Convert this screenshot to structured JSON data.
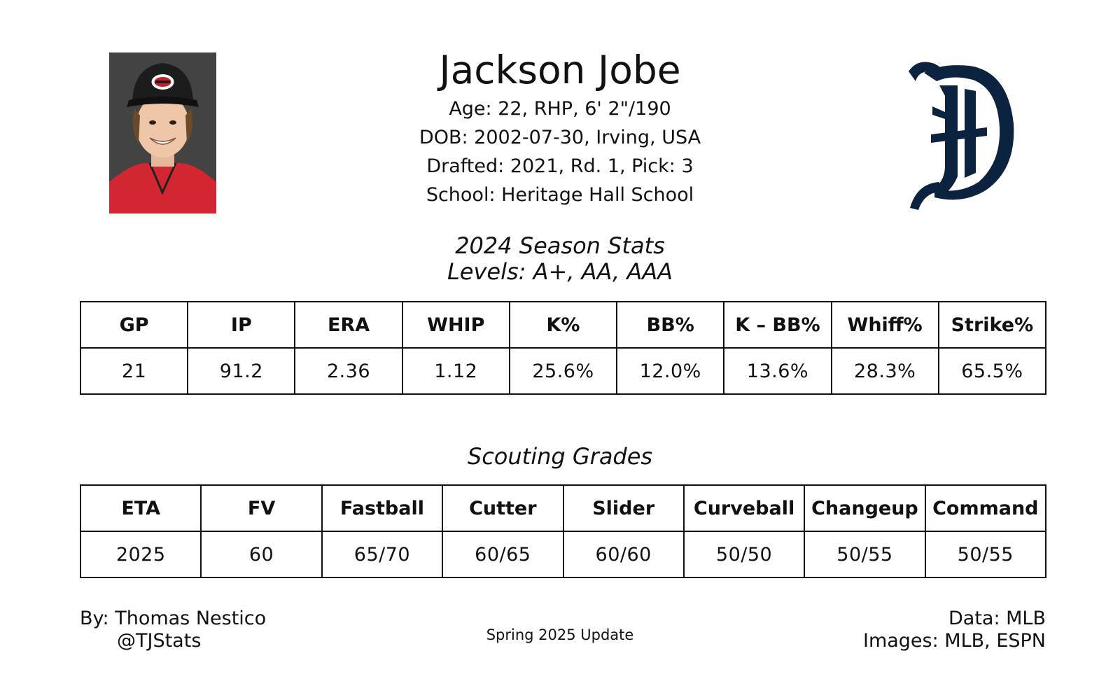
{
  "player": {
    "name": "Jackson Jobe",
    "age_line": "Age: 22, RHP, 6' 2\"/190",
    "dob_line": "DOB: 2002-07-30, Irving, USA",
    "draft_line": "Drafted: 2021, Rd. 1, Pick: 3",
    "school_line": "School: Heritage Hall School"
  },
  "season": {
    "title": "2024 Season Stats",
    "levels": "Levels: A+, AA, AAA",
    "headers": [
      "GP",
      "IP",
      "ERA",
      "WHIP",
      "K%",
      "BB%",
      "K – BB%",
      "Whiff%",
      "Strike%"
    ],
    "values": [
      "21",
      "91.2",
      "2.36",
      "1.12",
      "25.6%",
      "12.0%",
      "13.6%",
      "28.3%",
      "65.5%"
    ]
  },
  "scouting": {
    "title": "Scouting Grades",
    "headers": [
      "ETA",
      "FV",
      "Fastball",
      "Cutter",
      "Slider",
      "Curveball",
      "Changeup",
      "Command"
    ],
    "values": [
      "2025",
      "60",
      "65/70",
      "60/65",
      "60/60",
      "50/50",
      "50/55",
      "50/55"
    ]
  },
  "footer": {
    "author": "By: Thomas Nestico",
    "handle": "@TJStats",
    "update": "Spring 2025 Update",
    "data_source": "Data: MLB",
    "image_source": "Images: MLB, ESPN"
  },
  "colors": {
    "logo_navy": "#0c2340",
    "jersey_red": "#d22630",
    "headshot_bg": "#3f3f3f"
  },
  "icons": {
    "headshot": "player-headshot-photo",
    "team_logo": "old-english-d-logo"
  }
}
